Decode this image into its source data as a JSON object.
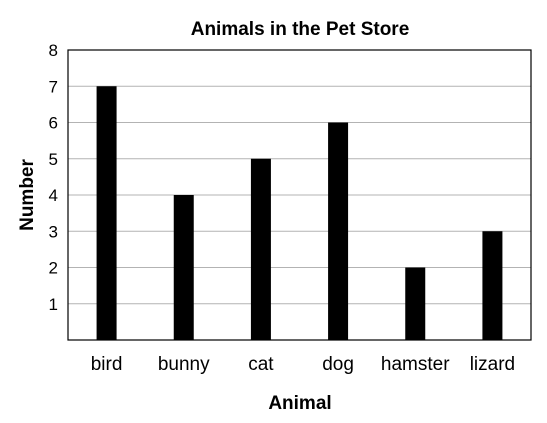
{
  "chart_data": {
    "type": "bar",
    "title": "Animals in the Pet Store",
    "xlabel": "Animal",
    "ylabel": "Number",
    "categories": [
      "bird",
      "bunny",
      "cat",
      "dog",
      "hamster",
      "lizard"
    ],
    "values": [
      7,
      4,
      5,
      6,
      2,
      3
    ],
    "ylim": [
      0,
      8
    ],
    "yticks": [
      "1",
      "2",
      "3",
      "4",
      "5",
      "6",
      "7",
      "8"
    ],
    "grid": true,
    "colors": {
      "bar": "#000000",
      "grid": "#b3b3b3",
      "frame": "#000000"
    }
  }
}
